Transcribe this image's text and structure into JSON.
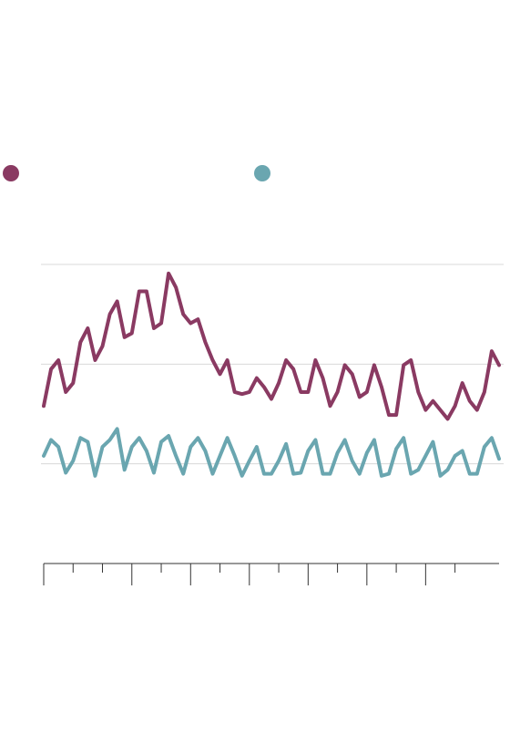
{
  "chart_data": {
    "type": "line",
    "x": [
      0,
      0.25,
      0.5,
      0.75,
      1,
      1.25,
      1.5,
      1.75,
      2,
      2.25,
      2.5,
      2.75,
      3,
      3.25,
      3.5,
      3.75,
      4,
      4.25,
      4.5,
      4.75,
      5,
      5.25,
      5.5,
      5.75,
      6,
      6.25,
      6.5,
      6.75,
      7,
      7.25,
      7.5,
      7.75,
      8,
      8.25,
      8.5,
      8.75,
      9,
      9.25,
      9.5,
      9.75,
      10,
      10.25,
      10.5,
      10.75,
      11,
      11.25,
      11.5,
      11.75,
      12,
      12.25,
      12.5,
      12.75,
      13,
      13.25,
      13.5,
      13.75,
      14,
      14.25,
      14.5,
      14.75,
      15,
      15.25,
      15.5
    ],
    "series": [
      {
        "color": "#8a3a62",
        "values": [
          1.58,
          1.95,
          2.04,
          1.72,
          1.81,
          2.22,
          2.36,
          2.04,
          2.18,
          2.5,
          2.63,
          2.27,
          2.31,
          2.73,
          2.73,
          2.36,
          2.41,
          2.91,
          2.77,
          2.5,
          2.41,
          2.45,
          2.22,
          2.04,
          1.9,
          2.04,
          1.72,
          1.7,
          1.72,
          1.86,
          1.77,
          1.65,
          1.81,
          2.04,
          1.95,
          1.72,
          1.72,
          2.04,
          1.86,
          1.58,
          1.72,
          1.99,
          1.9,
          1.67,
          1.72,
          1.99,
          1.77,
          1.49,
          1.49,
          1.99,
          2.04,
          1.72,
          1.54,
          1.63,
          1.54,
          1.45,
          1.58,
          1.81,
          1.63,
          1.54,
          1.72,
          2.13,
          1.99
        ]
      },
      {
        "color": "#6aa6b0",
        "values": [
          1.08,
          1.24,
          1.17,
          0.91,
          1.03,
          1.26,
          1.22,
          0.88,
          1.17,
          1.24,
          1.35,
          0.94,
          1.17,
          1.26,
          1.13,
          0.91,
          1.22,
          1.28,
          1.08,
          0.9,
          1.17,
          1.26,
          1.13,
          0.9,
          1.08,
          1.26,
          1.08,
          0.88,
          1.03,
          1.17,
          0.9,
          0.9,
          1.03,
          1.2,
          0.9,
          0.91,
          1.13,
          1.24,
          0.9,
          0.9,
          1.11,
          1.24,
          1.03,
          0.9,
          1.11,
          1.24,
          0.88,
          0.9,
          1.15,
          1.26,
          0.9,
          0.94,
          1.08,
          1.22,
          0.88,
          0.94,
          1.08,
          1.13,
          0.9,
          0.9,
          1.17,
          1.26,
          1.05
        ]
      }
    ],
    "xlim": [
      0,
      15.5
    ],
    "xticks": [
      0,
      1,
      2,
      3,
      4,
      5,
      6,
      7,
      8,
      9,
      10,
      11,
      12,
      13,
      14
    ],
    "xticks_major": [
      0,
      3,
      5,
      7,
      9,
      11,
      13
    ],
    "ylim": [
      0,
      3
    ],
    "yticks": [
      1,
      2,
      3
    ],
    "grid": true
  }
}
